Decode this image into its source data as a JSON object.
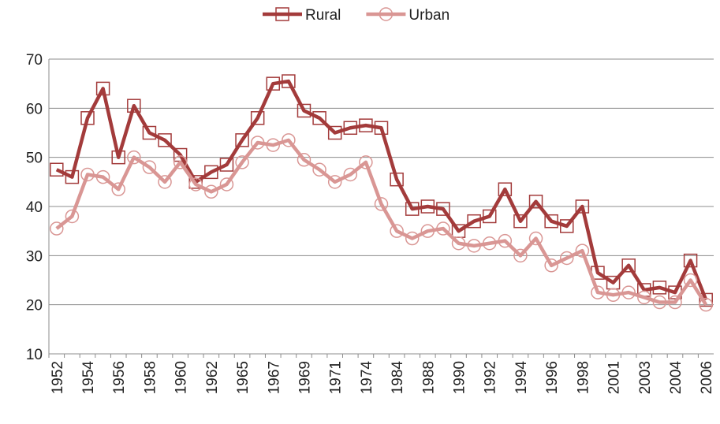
{
  "chart_data": {
    "type": "line",
    "categories": [
      "1952",
      null,
      "1954",
      null,
      "1956",
      null,
      "1958",
      null,
      "1960",
      null,
      "1962",
      null,
      "1965",
      null,
      "1967",
      null,
      "1969",
      null,
      "1971",
      null,
      "1974",
      null,
      "1984",
      null,
      "1988",
      null,
      "1990",
      null,
      "1992",
      null,
      "1994",
      null,
      "1996",
      null,
      "1998",
      null,
      "2001",
      null,
      "2003",
      null,
      "2004",
      null,
      "2006"
    ],
    "series": [
      {
        "name": "Rural",
        "color": "#a33b3b",
        "marker": "square",
        "values": [
          47.5,
          46,
          58,
          64,
          50,
          60.5,
          55,
          53.5,
          50.5,
          45,
          47,
          48.5,
          53.5,
          58,
          65,
          65.5,
          59.5,
          58,
          55,
          56,
          56.5,
          56,
          45.5,
          39.5,
          40,
          39.5,
          35,
          37,
          38,
          43.5,
          37,
          41,
          37,
          36,
          40,
          26.5,
          24.5,
          28,
          23,
          23.5,
          22.5,
          29,
          21
        ]
      },
      {
        "name": "Urban",
        "color": "#d99694",
        "marker": "circle",
        "values": [
          35.5,
          38,
          46.5,
          46,
          43.5,
          50,
          48,
          45,
          49,
          44.5,
          43,
          44.5,
          49,
          53,
          52.5,
          53.5,
          49.5,
          47.5,
          45,
          46.5,
          49,
          40.5,
          35,
          33.5,
          35,
          35.5,
          32.5,
          32,
          32.5,
          33,
          30,
          33.5,
          28,
          29.5,
          31,
          22.5,
          22,
          22.5,
          21.5,
          20.5,
          20.5,
          25,
          20
        ]
      }
    ],
    "ylim": [
      10,
      70
    ],
    "yticks": [
      10,
      20,
      30,
      40,
      50,
      60,
      70
    ],
    "grid": true,
    "legend": "top"
  }
}
